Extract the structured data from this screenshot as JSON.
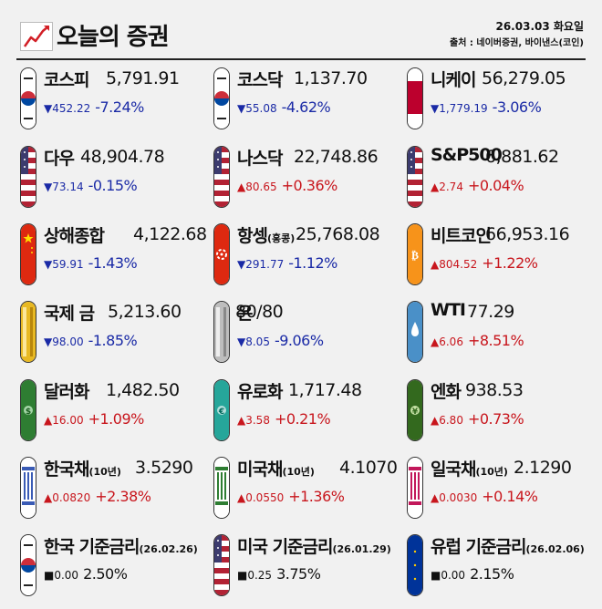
{
  "header": {
    "title": "오늘의 증권",
    "date": "26.03.03 화요일",
    "source": "출처 : 네이버증권, 바이낸스(코인)"
  },
  "rows": [
    [
      {
        "name": "코스피",
        "sub": "",
        "value": "5,791.91",
        "arrow": "▼",
        "amount": "452.22",
        "percent": "-7.24%",
        "dir": "down",
        "icon": "korea-flag-icon"
      },
      {
        "name": "코스닥",
        "sub": "",
        "value": "1,137.70",
        "arrow": "▼",
        "amount": "55.08",
        "percent": "-4.62%",
        "dir": "down",
        "icon": "korea-flag-icon"
      },
      {
        "name": "니케이",
        "sub": "",
        "value": "56,279.05",
        "arrow": "▼",
        "amount": "1,779.19",
        "percent": "-3.06%",
        "dir": "down",
        "icon": "japan-flag-icon"
      }
    ],
    [
      {
        "name": "다우",
        "sub": "",
        "value": "48,904.78",
        "arrow": "▼",
        "amount": "73.14",
        "percent": "-0.15%",
        "dir": "down",
        "icon": "usa-flag-icon"
      },
      {
        "name": "나스닥",
        "sub": "",
        "value": "22,748.86",
        "arrow": "▲",
        "amount": "80.65",
        "percent": "+0.36%",
        "dir": "up",
        "icon": "usa-flag-icon"
      },
      {
        "name": "S&P500",
        "sub": "",
        "value": "6,881.62",
        "arrow": "▲",
        "amount": "2.74",
        "percent": "+0.04%",
        "dir": "up",
        "icon": "usa-flag-icon"
      }
    ],
    [
      {
        "name": "상해종합",
        "sub": "",
        "value": "4,122.68",
        "arrow": "▼",
        "amount": "59.91",
        "percent": "-1.43%",
        "dir": "down",
        "icon": "china-flag-icon"
      },
      {
        "name": "항셍",
        "sub": "(홍콩)",
        "value": "25,768.08",
        "arrow": "▼",
        "amount": "291.77",
        "percent": "-1.12%",
        "dir": "down",
        "icon": "hongkong-flag-icon"
      },
      {
        "name": "비트코인",
        "sub": "",
        "value": "66,953.16",
        "arrow": "▲",
        "amount": "804.52",
        "percent": "+1.22%",
        "dir": "up",
        "icon": "bitcoin-icon"
      }
    ],
    [
      {
        "name": "국제 금",
        "sub": "",
        "value": "5,213.60",
        "arrow": "▼",
        "amount": "98.00",
        "percent": "-1.85%",
        "dir": "down",
        "icon": "gold-icon"
      },
      {
        "name": "은",
        "sub": "",
        "value": "80/80",
        "arrow": "▼",
        "amount": "8.05",
        "percent": "-9.06%",
        "dir": "down",
        "icon": "silver-icon"
      },
      {
        "name": "WTI",
        "sub": "",
        "value": "77.29",
        "arrow": "▲",
        "amount": "6.06",
        "percent": "+8.51%",
        "dir": "up",
        "icon": "oil-drop-icon"
      }
    ],
    [
      {
        "name": "달러화",
        "sub": "",
        "value": "1,482.50",
        "arrow": "▲",
        "amount": "16.00",
        "percent": "+1.09%",
        "dir": "up",
        "icon": "dollar-bill-icon"
      },
      {
        "name": "유로화",
        "sub": "",
        "value": "1,717.48",
        "arrow": "▲",
        "amount": "3.58",
        "percent": "+0.21%",
        "dir": "up",
        "icon": "euro-bill-icon"
      },
      {
        "name": "엔화",
        "sub": "",
        "value": "938.53",
        "arrow": "▲",
        "amount": "6.80",
        "percent": "+0.73%",
        "dir": "up",
        "icon": "yen-bill-icon"
      }
    ],
    [
      {
        "name": "한국채",
        "sub": "(10년)",
        "value": "3.5290",
        "arrow": "▲",
        "amount": "0.0820",
        "percent": "+2.38%",
        "dir": "up",
        "icon": "korea-bond-icon"
      },
      {
        "name": "미국채",
        "sub": "(10년)",
        "value": "4.1070",
        "arrow": "▲",
        "amount": "0.0550",
        "percent": "+1.36%",
        "dir": "up",
        "icon": "us-bond-icon"
      },
      {
        "name": "일국채",
        "sub": "(10년)",
        "value": "2.1290",
        "arrow": "▲",
        "amount": "0.0030",
        "percent": "+0.14%",
        "dir": "up",
        "icon": "japan-bond-icon"
      }
    ],
    [
      {
        "name": "한국 기준금리",
        "sub": "(26.02.26)",
        "value": "",
        "arrow": "■",
        "amount": "0.00",
        "percent": "2.50%",
        "dir": "flat",
        "icon": "korea-flag-icon"
      },
      {
        "name": "미국 기준금리",
        "sub": "(26.01.29)",
        "value": "",
        "arrow": "■",
        "amount": "0.25",
        "percent": "3.75%",
        "dir": "flat",
        "icon": "usa-flag-icon"
      },
      {
        "name": "유럽 기준금리",
        "sub": "(26.02.06)",
        "value": "",
        "arrow": "■",
        "amount": "0.00",
        "percent": "2.15%",
        "dir": "flat",
        "icon": "eu-flag-icon"
      }
    ]
  ]
}
